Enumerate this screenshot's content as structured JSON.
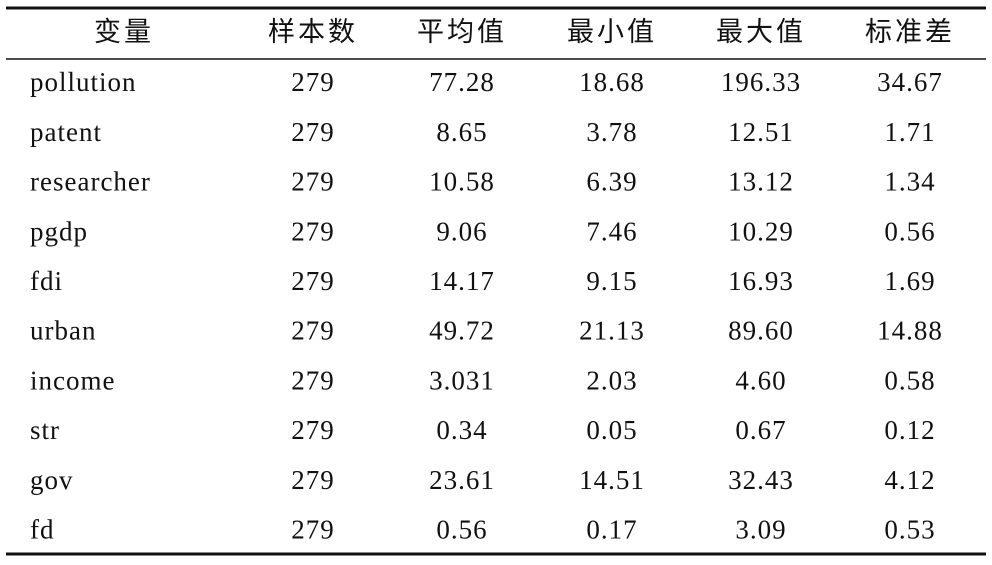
{
  "table": {
    "header": [
      "变量",
      "样本数",
      "平均值",
      "最小值",
      "最大值",
      "标准差"
    ],
    "rows": [
      [
        "pollution",
        "279",
        "77.28",
        "18.68",
        "196.33",
        "34.67"
      ],
      [
        "patent",
        "279",
        "8.65",
        "3.78",
        "12.51",
        "1.71"
      ],
      [
        "researcher",
        "279",
        "10.58",
        "6.39",
        "13.12",
        "1.34"
      ],
      [
        "pgdp",
        "279",
        "9.06",
        "7.46",
        "10.29",
        "0.56"
      ],
      [
        "fdi",
        "279",
        "14.17",
        "9.15",
        "16.93",
        "1.69"
      ],
      [
        "urban",
        "279",
        "49.72",
        "21.13",
        "89.60",
        "14.88"
      ],
      [
        "income",
        "279",
        "3.031",
        "2.03",
        "4.60",
        "0.58"
      ],
      [
        "str",
        "279",
        "0.34",
        "0.05",
        "0.67",
        "0.12"
      ],
      [
        "gov",
        "279",
        "23.61",
        "14.51",
        "32.43",
        "4.12"
      ],
      [
        "fd",
        "279",
        "0.56",
        "0.17",
        "3.09",
        "0.53"
      ]
    ]
  }
}
